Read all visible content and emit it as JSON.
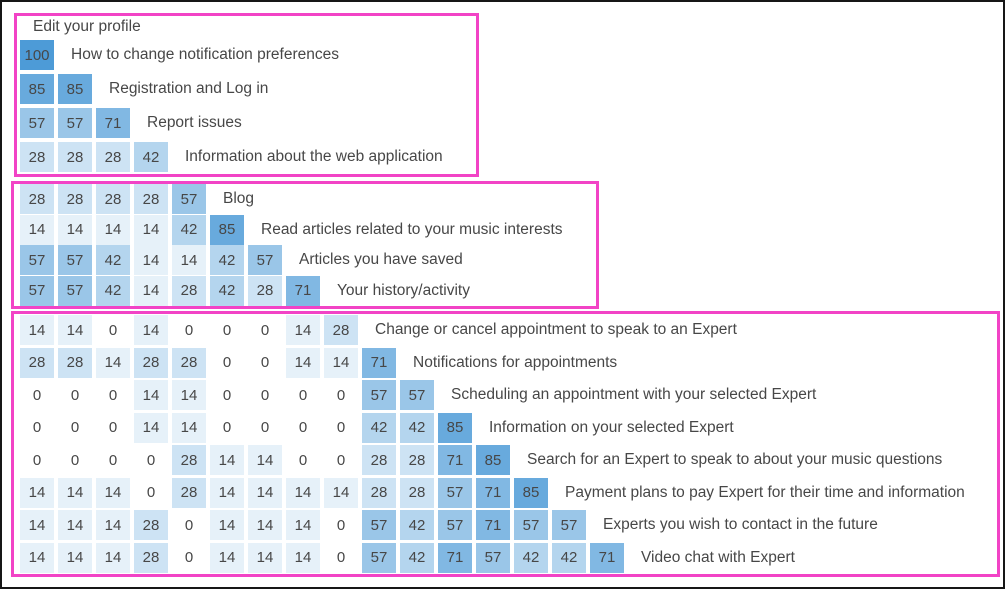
{
  "chart_data": {
    "type": "heatmap",
    "description": "Card-sort similarity matrix with three cluster group outlines",
    "value_range": [
      0,
      100
    ],
    "legend_position": "none",
    "grid": false,
    "items": [
      {
        "label": "Edit your profile",
        "values": []
      },
      {
        "label": "How to change notification preferences",
        "values": [
          100
        ]
      },
      {
        "label": "Registration and Log in",
        "values": [
          85,
          85
        ]
      },
      {
        "label": "Report issues",
        "values": [
          57,
          57,
          71
        ]
      },
      {
        "label": "Information about the web application",
        "values": [
          28,
          28,
          28,
          42
        ]
      },
      {
        "label": "Blog",
        "values": [
          28,
          28,
          28,
          28,
          57
        ]
      },
      {
        "label": "Read articles related to your music interests",
        "values": [
          14,
          14,
          14,
          14,
          42,
          85
        ]
      },
      {
        "label": "Articles you have saved",
        "values": [
          57,
          57,
          42,
          14,
          14,
          42,
          57
        ]
      },
      {
        "label": "Your history/activity",
        "values": [
          57,
          57,
          42,
          14,
          28,
          42,
          28,
          71
        ]
      },
      {
        "label": "Change or cancel appointment to speak to an Expert",
        "values": [
          14,
          14,
          0,
          14,
          0,
          0,
          0,
          14,
          28
        ]
      },
      {
        "label": "Notifications for appointments",
        "values": [
          28,
          28,
          14,
          28,
          28,
          0,
          0,
          14,
          14,
          71
        ]
      },
      {
        "label": "Scheduling an appointment with your selected Expert",
        "values": [
          0,
          0,
          0,
          14,
          14,
          0,
          0,
          0,
          0,
          57,
          57
        ]
      },
      {
        "label": "Information on your selected Expert",
        "values": [
          0,
          0,
          0,
          14,
          14,
          0,
          0,
          0,
          0,
          42,
          42,
          85
        ]
      },
      {
        "label": "Search for an Expert to speak to about your music questions",
        "values": [
          0,
          0,
          0,
          0,
          28,
          14,
          14,
          0,
          0,
          28,
          28,
          71,
          85
        ]
      },
      {
        "label": "Payment plans to pay Expert for their time and information",
        "values": [
          14,
          14,
          14,
          0,
          28,
          14,
          14,
          14,
          14,
          28,
          28,
          57,
          71,
          85
        ]
      },
      {
        "label": "Experts you wish to contact in the future",
        "values": [
          14,
          14,
          14,
          28,
          0,
          14,
          14,
          14,
          0,
          57,
          42,
          57,
          71,
          57,
          57
        ]
      },
      {
        "label": "Video chat with Expert",
        "values": [
          14,
          14,
          14,
          28,
          0,
          14,
          14,
          14,
          0,
          57,
          42,
          71,
          57,
          42,
          42,
          71
        ]
      }
    ],
    "clusters": [
      {
        "name": "cluster-1",
        "row_start": 0,
        "row_end": 4
      },
      {
        "name": "cluster-2",
        "row_start": 5,
        "row_end": 8
      },
      {
        "name": "cluster-3",
        "row_start": 9,
        "row_end": 16
      }
    ],
    "colors": {
      "cell_min": "#FFFFFF",
      "cell_max": "#4D9BD7",
      "cluster_border": "#F243C6",
      "frame_border": "#161616",
      "text": "#474747"
    }
  }
}
